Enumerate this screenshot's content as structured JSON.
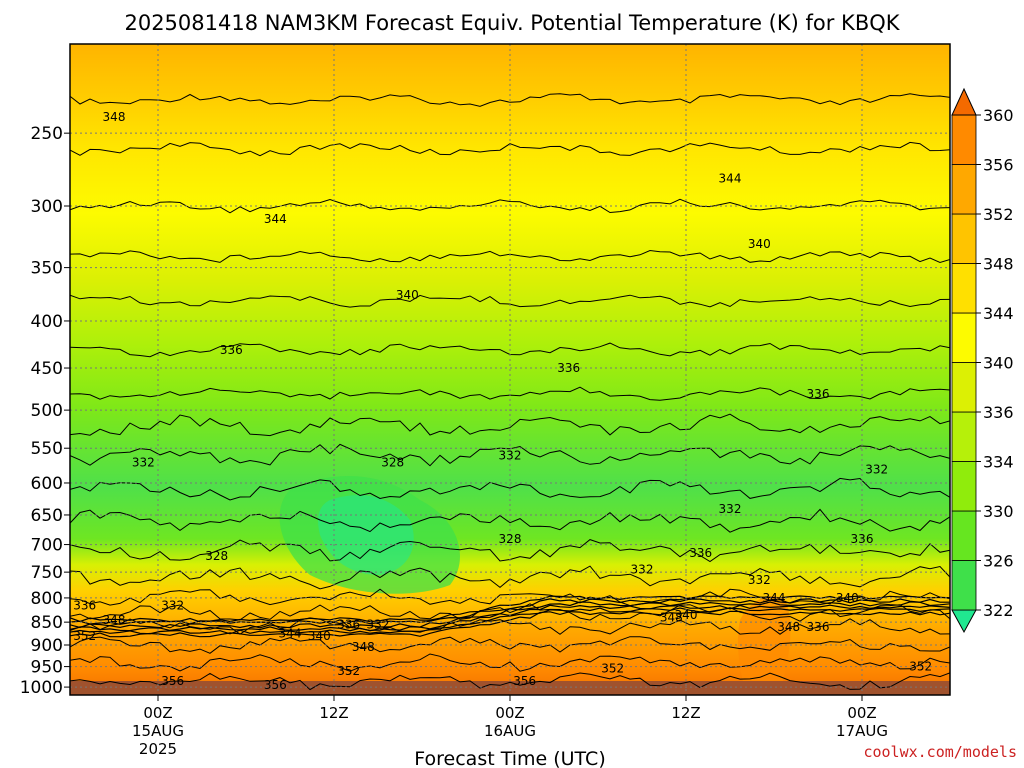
{
  "chart_data": {
    "type": "heatmap",
    "title": "2025081418 NAM3KM Forecast Equiv. Potential Temperature (K) for KBQK",
    "xlabel": "Forecast Time (UTC)",
    "ylabel": "",
    "y_scale": "log-pressure",
    "ylim": [
      1020,
      200
    ],
    "yticks": [
      250,
      300,
      350,
      400,
      450,
      500,
      550,
      600,
      650,
      700,
      750,
      800,
      850,
      900,
      950,
      1000
    ],
    "x_ticks": [
      {
        "time": "2025-08-15T00",
        "lines": [
          "00Z",
          "15AUG",
          "2025"
        ]
      },
      {
        "time": "2025-08-15T12",
        "lines": [
          "12Z"
        ]
      },
      {
        "time": "2025-08-16T00",
        "lines": [
          "00Z",
          "16AUG"
        ]
      },
      {
        "time": "2025-08-16T12",
        "lines": [
          "12Z"
        ]
      },
      {
        "time": "2025-08-17T00",
        "lines": [
          "00Z",
          "17AUG"
        ]
      }
    ],
    "x_range": [
      "2025-08-14T18",
      "2025-08-17T06"
    ],
    "grid": true,
    "colorbar": {
      "levels": [
        322,
        326,
        330,
        334,
        336,
        340,
        344,
        348,
        352,
        356,
        360
      ],
      "colors": [
        "#20e890",
        "#3fe04a",
        "#66e620",
        "#90ec0c",
        "#b6f00a",
        "#dcf004",
        "#fdfb00",
        "#ffe000",
        "#ffc400",
        "#ffa800",
        "#ff8a00",
        "#f46a00"
      ],
      "placement": "right"
    },
    "contour_labels": [
      {
        "t": "2025-08-14T21",
        "p": 240,
        "text": "348"
      },
      {
        "t": "2025-08-15T08",
        "p": 310,
        "text": "344"
      },
      {
        "t": "2025-08-16T15",
        "p": 280,
        "text": "344"
      },
      {
        "t": "2025-08-16T17",
        "p": 330,
        "text": "340"
      },
      {
        "t": "2025-08-15T17",
        "p": 375,
        "text": "340"
      },
      {
        "t": "2025-08-15T05",
        "p": 430,
        "text": "336"
      },
      {
        "t": "2025-08-16T04",
        "p": 450,
        "text": "336"
      },
      {
        "t": "2025-08-16T21",
        "p": 480,
        "text": "336"
      },
      {
        "t": "2025-08-14T23",
        "p": 570,
        "text": "332"
      },
      {
        "t": "2025-08-15T16",
        "p": 570,
        "text": "328"
      },
      {
        "t": "2025-08-16T00",
        "p": 560,
        "text": "332"
      },
      {
        "t": "2025-08-17T01",
        "p": 580,
        "text": "332"
      },
      {
        "t": "2025-08-16T15",
        "p": 640,
        "text": "332"
      },
      {
        "t": "2025-08-16T00",
        "p": 690,
        "text": "328"
      },
      {
        "t": "2025-08-15T04",
        "p": 720,
        "text": "328"
      },
      {
        "t": "2025-08-16T13",
        "p": 715,
        "text": "336"
      },
      {
        "t": "2025-08-16T09",
        "p": 745,
        "text": "332"
      },
      {
        "t": "2025-08-17T00",
        "p": 690,
        "text": "336"
      },
      {
        "t": "2025-08-16T17",
        "p": 765,
        "text": "332"
      },
      {
        "t": "2025-08-16T18",
        "p": 800,
        "text": "344"
      },
      {
        "t": "2025-08-16T23",
        "p": 800,
        "text": "340"
      },
      {
        "t": "2025-08-14T19",
        "p": 815,
        "text": "336"
      },
      {
        "t": "2025-08-15T01",
        "p": 815,
        "text": "332"
      },
      {
        "t": "2025-08-14T21",
        "p": 845,
        "text": "348"
      },
      {
        "t": "2025-08-14T19",
        "p": 880,
        "text": "352"
      },
      {
        "t": "2025-08-15T09",
        "p": 875,
        "text": "344"
      },
      {
        "t": "2025-08-15T11",
        "p": 880,
        "text": "340"
      },
      {
        "t": "2025-08-15T13",
        "p": 855,
        "text": "336"
      },
      {
        "t": "2025-08-15T15",
        "p": 855,
        "text": "332"
      },
      {
        "t": "2025-08-15T14",
        "p": 905,
        "text": "348"
      },
      {
        "t": "2025-08-15T13",
        "p": 960,
        "text": "352"
      },
      {
        "t": "2025-08-15T01",
        "p": 985,
        "text": "356"
      },
      {
        "t": "2025-08-15T08",
        "p": 995,
        "text": "356"
      },
      {
        "t": "2025-08-16T01",
        "p": 985,
        "text": "356"
      },
      {
        "t": "2025-08-16T07",
        "p": 955,
        "text": "352"
      },
      {
        "t": "2025-08-16T11",
        "p": 840,
        "text": "348"
      },
      {
        "t": "2025-08-16T12",
        "p": 835,
        "text": "340"
      },
      {
        "t": "2025-08-16T19",
        "p": 860,
        "text": "348"
      },
      {
        "t": "2025-08-16T21",
        "p": 860,
        "text": "336"
      },
      {
        "t": "2025-08-17T04",
        "p": 950,
        "text": "352"
      }
    ]
  },
  "credit": "coolwx.com/models"
}
